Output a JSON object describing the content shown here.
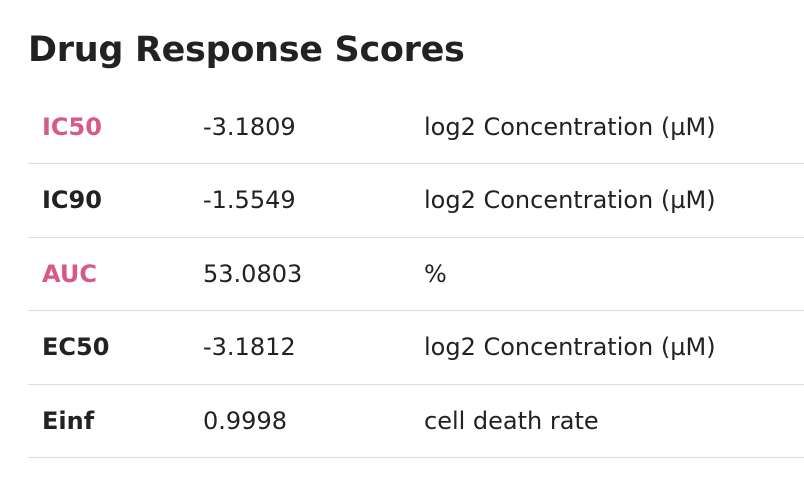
{
  "section": {
    "title": "Drug Response Scores"
  },
  "scores": {
    "rows": [
      {
        "name": "IC50",
        "value": "-3.1809",
        "unit": "log2 Concentration (µM)"
      },
      {
        "name": "IC90",
        "value": "-1.5549",
        "unit": "log2 Concentration (µM)"
      },
      {
        "name": "AUC",
        "value": "53.0803",
        "unit": "%"
      },
      {
        "name": "EC50",
        "value": "-3.1812",
        "unit": "log2 Concentration (µM)"
      },
      {
        "name": "Einf",
        "value": "0.9998",
        "unit": "cell death rate"
      }
    ]
  },
  "colors": {
    "link": "#d6598a",
    "text": "#222222",
    "divider": "#dcdcdc"
  }
}
